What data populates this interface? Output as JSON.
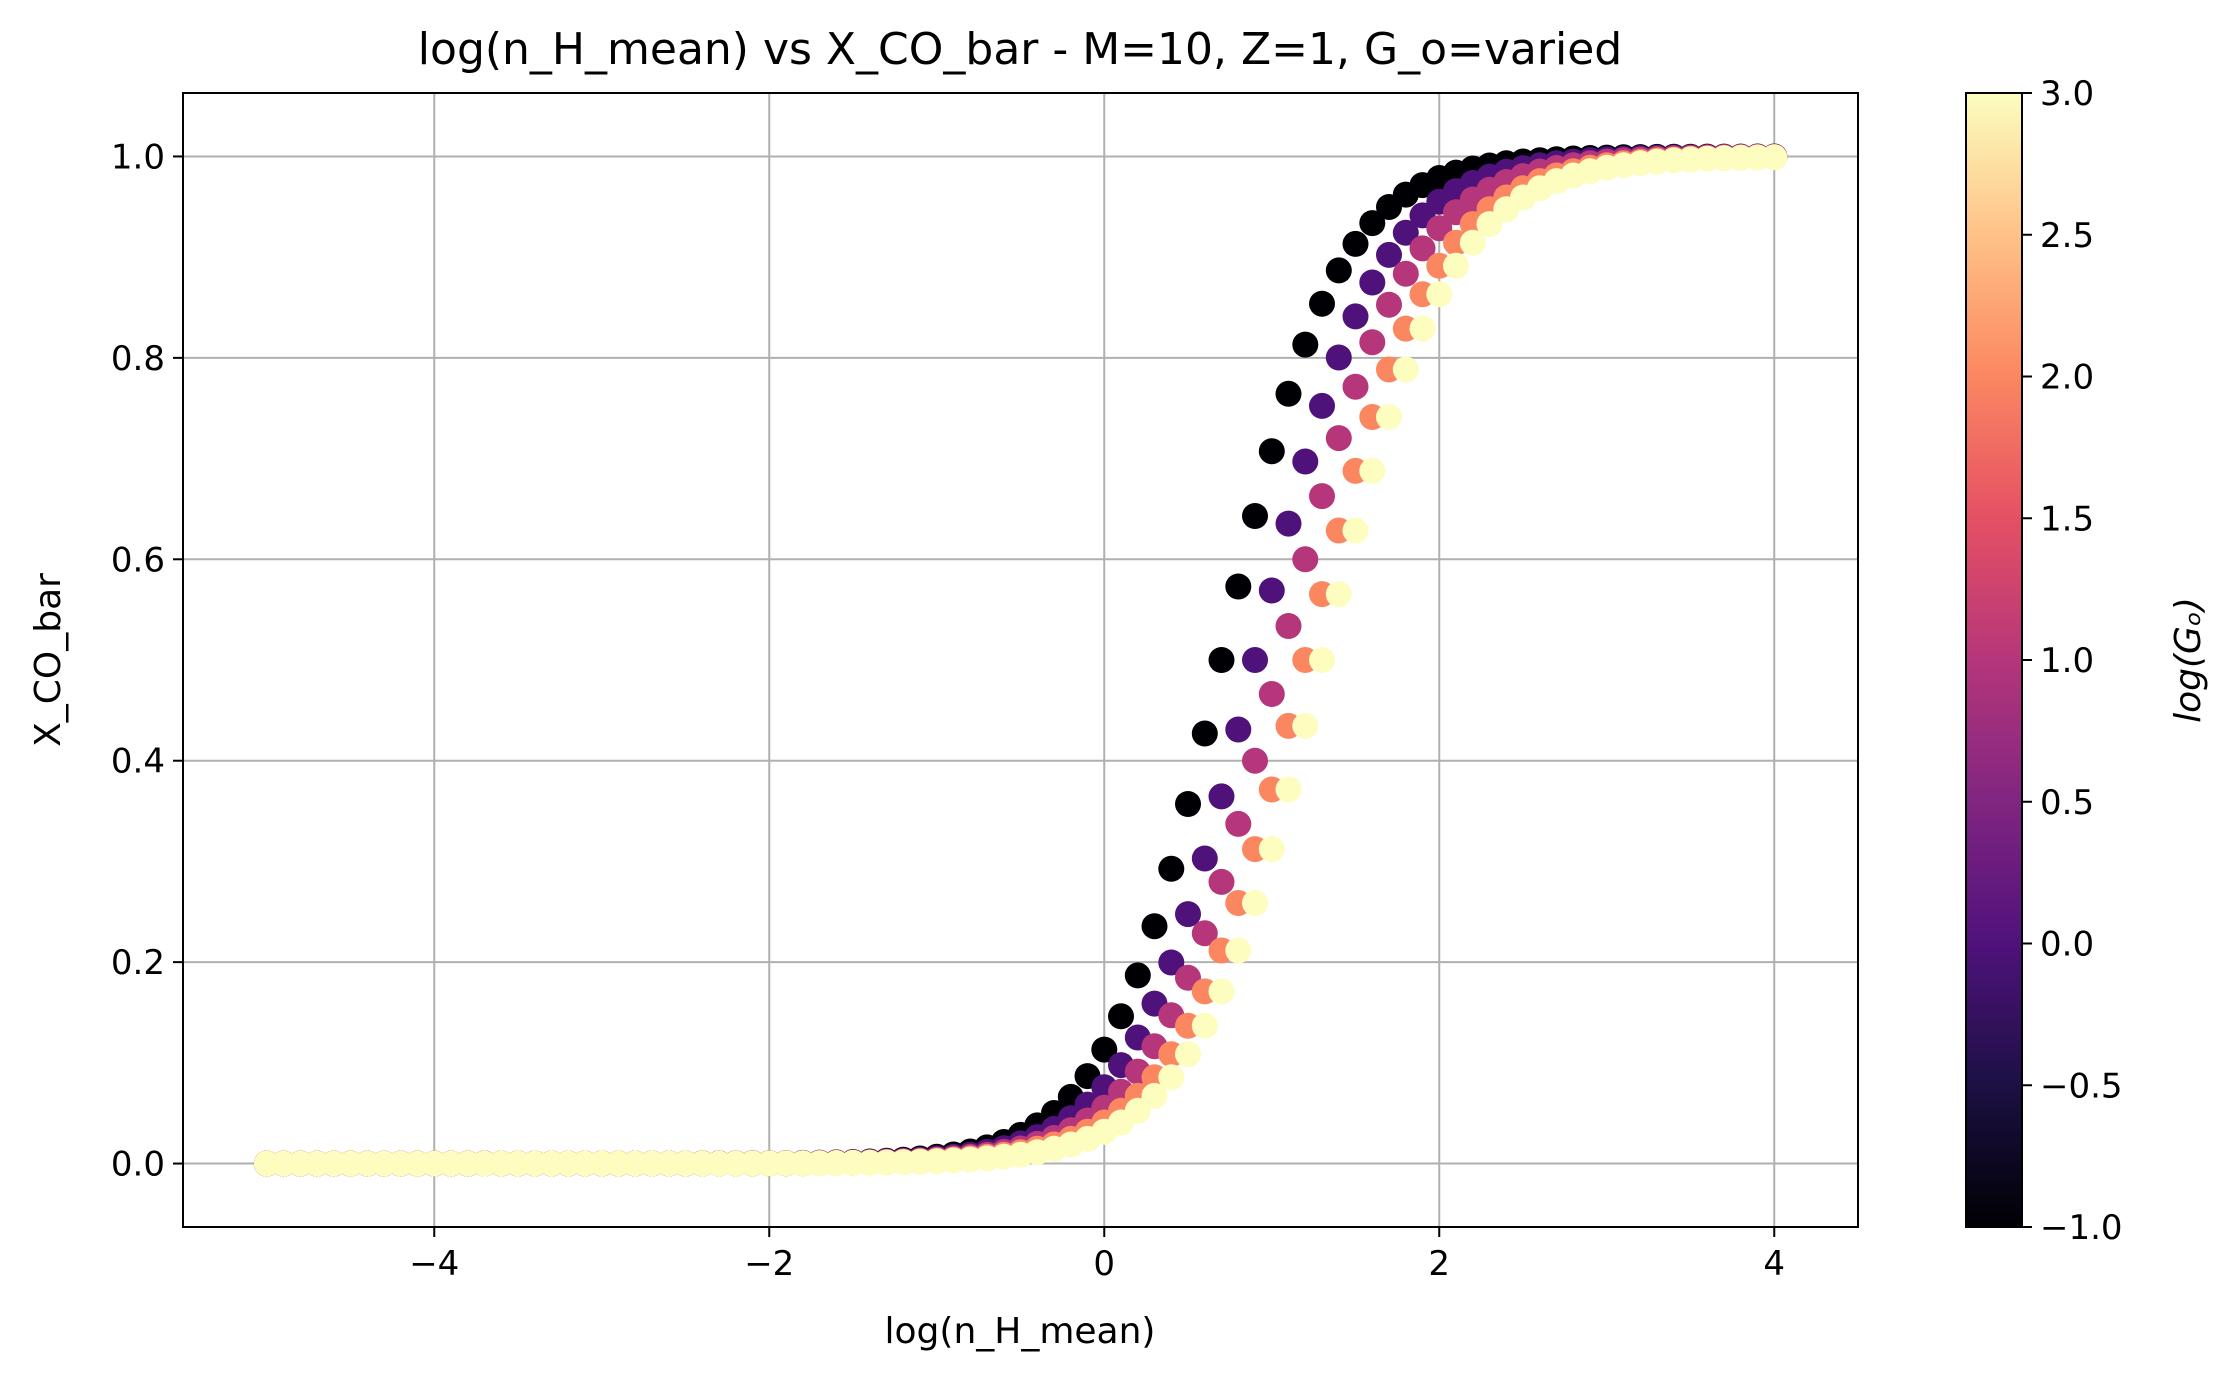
{
  "chart_data": {
    "type": "scatter",
    "title": "log(n_H_mean) vs X_CO_bar - M=10, Z=1, G_o=varied",
    "xlabel": "log(n_H_mean)",
    "ylabel": "X_CO_bar",
    "xlim": [
      -5.5,
      4.5
    ],
    "ylim": [
      -0.063,
      1.063
    ],
    "xticks": [
      -4,
      -2,
      0,
      2,
      4
    ],
    "xtick_labels": [
      "−4",
      "−2",
      "0",
      "2",
      "4"
    ],
    "yticks": [
      0.0,
      0.2,
      0.4,
      0.6,
      0.8,
      1.0
    ],
    "ytick_labels": [
      "0.0",
      "0.2",
      "0.4",
      "0.6",
      "0.8",
      "1.0"
    ],
    "grid": true,
    "x_range": [
      -5.0,
      4.0
    ],
    "x_step": 0.1,
    "curve_model": "logistic",
    "series": [
      {
        "name": "log(G_o)=-1.0",
        "log_G": -1.0,
        "midpoint": 0.7,
        "scale": 0.34
      },
      {
        "name": "log(G_o)=0.0",
        "log_G": 0.0,
        "midpoint": 0.9,
        "scale": 0.36
      },
      {
        "name": "log(G_o)=1.0",
        "log_G": 1.0,
        "midpoint": 1.05,
        "scale": 0.37
      },
      {
        "name": "log(G_o)=2.0",
        "log_G": 2.0,
        "midpoint": 1.2,
        "scale": 0.38
      },
      {
        "name": "log(G_o)=3.0",
        "log_G": 3.0,
        "midpoint": 1.3,
        "scale": 0.38
      }
    ],
    "colorbar": {
      "label": "log(Gₒ)",
      "min": -1.0,
      "max": 3.0,
      "colormap": "magma",
      "ticks": [
        -1.0,
        -0.5,
        0.0,
        0.5,
        1.0,
        1.5,
        2.0,
        2.5,
        3.0
      ],
      "tick_labels": [
        "−1.0",
        "−0.5",
        "0.0",
        "0.5",
        "1.0",
        "1.5",
        "2.0",
        "2.5",
        "3.0"
      ],
      "stops": [
        "#000004",
        "#1c1044",
        "#4f127b",
        "#812581",
        "#b5367a",
        "#e55064",
        "#fb8761",
        "#fec287",
        "#fcfdbf"
      ]
    },
    "colors": {
      "grid": "#b0b0b0",
      "axis": "#000000"
    }
  }
}
